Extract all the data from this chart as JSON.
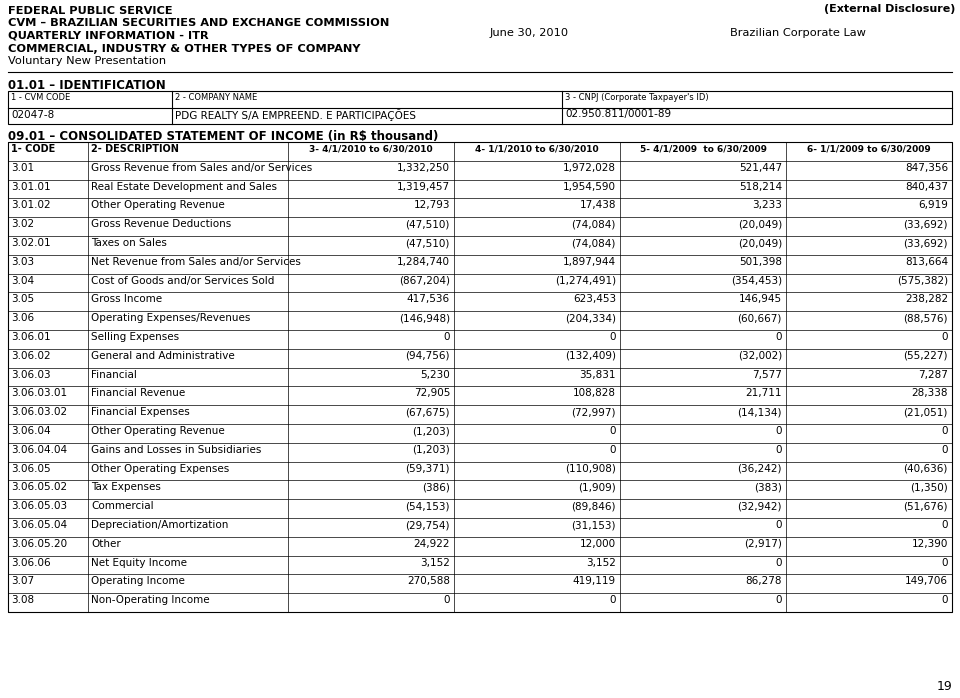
{
  "header_lines": [
    [
      "FEDERAL PUBLIC SERVICE",
      true
    ],
    [
      "CVM – BRAZILIAN SECURITIES AND EXCHANGE COMMISSION",
      true
    ],
    [
      "QUARTERLY INFORMATION - ITR",
      true
    ],
    [
      "COMMERCIAL, INDUSTRY & OTHER TYPES OF COMPANY",
      true
    ],
    [
      "Voluntary New Presentation",
      false
    ]
  ],
  "top_right_label": "(External Disclosure)",
  "date_label": "June 30, 2010",
  "law_label": "Brazilian Corporate Law",
  "section_id": "01.01 – IDENTIFICATION",
  "id_headers": [
    "1 - CVM CODE",
    "2 - COMPANY NAME",
    "3 - CNPJ (Corporate Taxpayer's ID)"
  ],
  "id_values": [
    "02047-8",
    "PDG REALTY S/A EMPREEND. E PARTICIPAÇÕES",
    "02.950.811/0001-89"
  ],
  "section_income": "09.01 – CONSOLIDATED STATEMENT OF INCOME (in R$ thousand)",
  "table_headers": [
    "1- CODE",
    "2- DESCRIPTION",
    "3- 4/1/2010 to 6/30/2010",
    "4- 1/1/2010 to 6/30/2010",
    "5- 4/1/2009  to 6/30/2009",
    "6- 1/1/2009 to 6/30/2009"
  ],
  "table_rows": [
    [
      "3.01",
      "Gross Revenue from Sales and/or Services",
      "1,332,250",
      "1,972,028",
      "521,447",
      "847,356"
    ],
    [
      "3.01.01",
      "Real Estate Development and Sales",
      "1,319,457",
      "1,954,590",
      "518,214",
      "840,437"
    ],
    [
      "3.01.02",
      "Other Operating Revenue",
      "12,793",
      "17,438",
      "3,233",
      "6,919"
    ],
    [
      "3.02",
      "Gross Revenue Deductions",
      "(47,510)",
      "(74,084)",
      "(20,049)",
      "(33,692)"
    ],
    [
      "3.02.01",
      "Taxes on Sales",
      "(47,510)",
      "(74,084)",
      "(20,049)",
      "(33,692)"
    ],
    [
      "3.03",
      "Net Revenue from Sales and/or Services",
      "1,284,740",
      "1,897,944",
      "501,398",
      "813,664"
    ],
    [
      "3.04",
      "Cost of Goods and/or Services Sold",
      "(867,204)",
      "(1,274,491)",
      "(354,453)",
      "(575,382)"
    ],
    [
      "3.05",
      "Gross Income",
      "417,536",
      "623,453",
      "146,945",
      "238,282"
    ],
    [
      "3.06",
      "Operating Expenses/Revenues",
      "(146,948)",
      "(204,334)",
      "(60,667)",
      "(88,576)"
    ],
    [
      "3.06.01",
      "Selling Expenses",
      "0",
      "0",
      "0",
      "0"
    ],
    [
      "3.06.02",
      "General and Administrative",
      "(94,756)",
      "(132,409)",
      "(32,002)",
      "(55,227)"
    ],
    [
      "3.06.03",
      "Financial",
      "5,230",
      "35,831",
      "7,577",
      "7,287"
    ],
    [
      "3.06.03.01",
      "Financial Revenue",
      "72,905",
      "108,828",
      "21,711",
      "28,338"
    ],
    [
      "3.06.03.02",
      "Financial Expenses",
      "(67,675)",
      "(72,997)",
      "(14,134)",
      "(21,051)"
    ],
    [
      "3.06.04",
      "Other Operating Revenue",
      "(1,203)",
      "0",
      "0",
      "0"
    ],
    [
      "3.06.04.04",
      "Gains and Losses in Subsidiaries",
      "(1,203)",
      "0",
      "0",
      "0"
    ],
    [
      "3.06.05",
      "Other Operating Expenses",
      "(59,371)",
      "(110,908)",
      "(36,242)",
      "(40,636)"
    ],
    [
      "3.06.05.02",
      "Tax Expenses",
      "(386)",
      "(1,909)",
      "(383)",
      "(1,350)"
    ],
    [
      "3.06.05.03",
      "Commercial",
      "(54,153)",
      "(89,846)",
      "(32,942)",
      "(51,676)"
    ],
    [
      "3.06.05.04",
      "Depreciation/Amortization",
      "(29,754)",
      "(31,153)",
      "0",
      "0"
    ],
    [
      "3.06.05.20",
      "Other",
      "24,922",
      "12,000",
      "(2,917)",
      "12,390"
    ],
    [
      "3.06.06",
      "Net Equity Income",
      "3,152",
      "3,152",
      "0",
      "0"
    ],
    [
      "3.07",
      "Operating Income",
      "270,588",
      "419,119",
      "86,278",
      "149,706"
    ],
    [
      "3.08",
      "Non-Operating Income",
      "0",
      "0",
      "0",
      "0"
    ]
  ],
  "page_number": "19",
  "bg_color": "#ffffff",
  "text_color": "#000000",
  "line_color": "#000000"
}
